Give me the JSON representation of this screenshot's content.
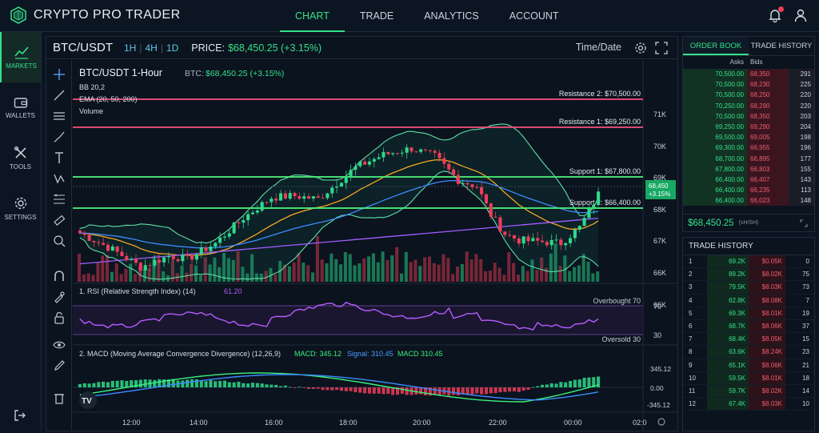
{
  "app": {
    "title": "CRYPTO PRO TRADER"
  },
  "nav": [
    {
      "label": "CHART",
      "active": true
    },
    {
      "label": "TRADE"
    },
    {
      "label": "ANALYTICS"
    },
    {
      "label": "ACCOUNT"
    }
  ],
  "sidebar": [
    {
      "label": "MARKETS",
      "icon": "chart-icon",
      "active": true
    },
    {
      "label": "WALLETS",
      "icon": "wallet-icon"
    },
    {
      "label": "TOOLS",
      "icon": "tools-icon"
    },
    {
      "label": "SETTINGS",
      "icon": "gear-icon"
    }
  ],
  "header": {
    "pair": "BTC/USDT",
    "timeframes": [
      "1H",
      "4H",
      "1D"
    ],
    "price_label": "PRICE:",
    "price_value": "$68,450.25 (+3.15%)",
    "time_date": "Time/Date"
  },
  "chart": {
    "title": "BTC/USDT  1-Hour",
    "sub_label": "BTC:",
    "sub_value": "$68,450.25 (+3.15%)",
    "indicators": [
      "BB 20,2",
      "EMA (20, 50, 200)",
      "Volume"
    ],
    "price_ticks": [
      "71K",
      "70K",
      "69K",
      "68K",
      "67K",
      "66K",
      "66K"
    ],
    "levels": [
      {
        "label": "Resistance 2: $70,500.00",
        "color": "#f0507a"
      },
      {
        "label": "Resistance 1: $69,250.00",
        "color": "#f0507a"
      },
      {
        "label": "Support 1: $67,800.00",
        "color": "#4df07a"
      },
      {
        "label": "Support 2: $66,400.00",
        "color": "#4df07a"
      }
    ],
    "current_price_tag": [
      "68,450",
      "+3.15%"
    ],
    "rsi": {
      "title": "1. RSI (Relative Strength Index) (14)",
      "value": "61.20",
      "overbought": "Overbought 70",
      "oversold": "Oversold 30",
      "ticks": [
        "70",
        "30"
      ]
    },
    "macd": {
      "title": "2. MACD (Moving Average Convergence Divergence) (12,26,9)",
      "macd_label": "MACD: 345.12",
      "signal_label": "Signal: 310.45",
      "hist_label": "MACD 310.45",
      "ticks": [
        "345.12",
        "0.00",
        "-345.12"
      ]
    },
    "time_ticks": [
      "12:00",
      "14:00",
      "16:00",
      "18:00",
      "20:00",
      "22:00",
      "00:00",
      "02:0"
    ],
    "watermark": "TV",
    "colors": {
      "up": "#2fd98a",
      "down": "#ef3d5a",
      "bb": "#5fe0a6",
      "ema20": "#f5a623",
      "ema50": "#3d8bff",
      "ema200": "#a45cff",
      "rsi": "#b45cff",
      "macd": "#3cf07a",
      "signal": "#3d8bff"
    }
  },
  "orderbook": {
    "tabs": [
      "ORDER BOOK",
      "TRADE HISTORY"
    ],
    "col_asks": "Asks",
    "col_bids": "Bids",
    "rows": [
      [
        "70,500.00",
        "68,350",
        "291"
      ],
      [
        "70,500.00",
        "68,230",
        "225"
      ],
      [
        "70,500.00",
        "68,250",
        "220"
      ],
      [
        "70,250.00",
        "68,290",
        "220"
      ],
      [
        "70,500.00",
        "68,350",
        "203"
      ],
      [
        "69,250.00",
        "69,290",
        "204"
      ],
      [
        "69,500.00",
        "69,005",
        "198"
      ],
      [
        "69,300.00",
        "66,955",
        "196"
      ],
      [
        "68,700.00",
        "66,895",
        "177"
      ],
      [
        "67,800.00",
        "66,803",
        "155"
      ],
      [
        "66,400.00",
        "66,407",
        "143"
      ],
      [
        "66,400.00",
        "66,235",
        "113"
      ],
      [
        "66,400.00",
        "66,023",
        "148"
      ]
    ],
    "last_price": "$68,450.25",
    "last_price_sub": "(sH/SH)"
  },
  "trade_history": {
    "title": "TRADE HISTORY",
    "rows": [
      [
        "1",
        "69.2K",
        "$0.05K",
        "0"
      ],
      [
        "2",
        "89.2K",
        "$8.02K",
        "75"
      ],
      [
        "3",
        "79.5K",
        "$8.03K",
        "73"
      ],
      [
        "4",
        "62.8K",
        "$8.08K",
        "7"
      ],
      [
        "5",
        "69.3K",
        "$8.01K",
        "19"
      ],
      [
        "6",
        "68.7K",
        "$8.06K",
        "37"
      ],
      [
        "7",
        "68.4K",
        "$8.05K",
        "15"
      ],
      [
        "8",
        "63.6K",
        "$8.24K",
        "23"
      ],
      [
        "9",
        "65.1K",
        "$8.06K",
        "21"
      ],
      [
        "10",
        "59.5K",
        "$8.01K",
        "18"
      ],
      [
        "11",
        "59.7K",
        "$8.02K",
        "14"
      ],
      [
        "12",
        "67.4K",
        "$8.03K",
        "10"
      ]
    ]
  }
}
